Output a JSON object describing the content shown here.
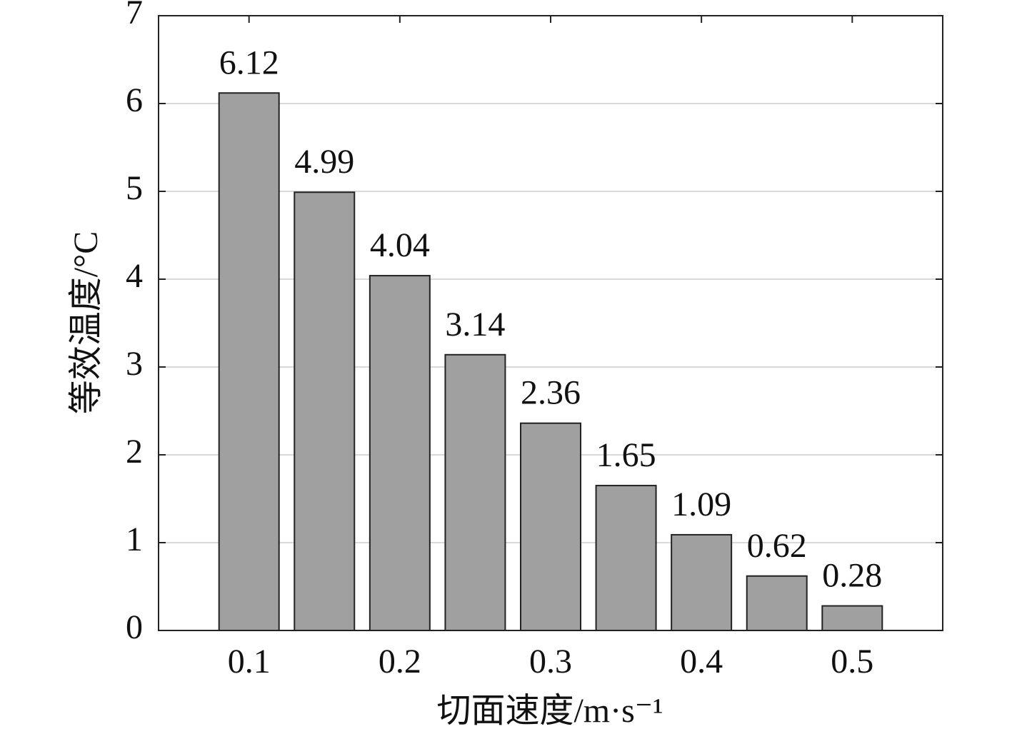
{
  "chart_data": {
    "type": "bar",
    "x": [
      0.1,
      0.15,
      0.2,
      0.25,
      0.3,
      0.35,
      0.4,
      0.45,
      0.5
    ],
    "values": [
      6.12,
      4.99,
      4.04,
      3.14,
      2.36,
      1.65,
      1.09,
      0.62,
      0.28
    ],
    "color": "#a0a0a0",
    "xlim": [
      0.04,
      0.56
    ],
    "xticks": [
      0.1,
      0.2,
      0.3,
      0.4,
      0.5
    ],
    "ylim": [
      0,
      7
    ],
    "yticks": [
      0,
      1,
      2,
      3,
      4,
      5,
      6,
      7
    ],
    "grid": true,
    "x_label": "切面速度/m·s⁻¹",
    "y_label": "等效温度/°C"
  }
}
